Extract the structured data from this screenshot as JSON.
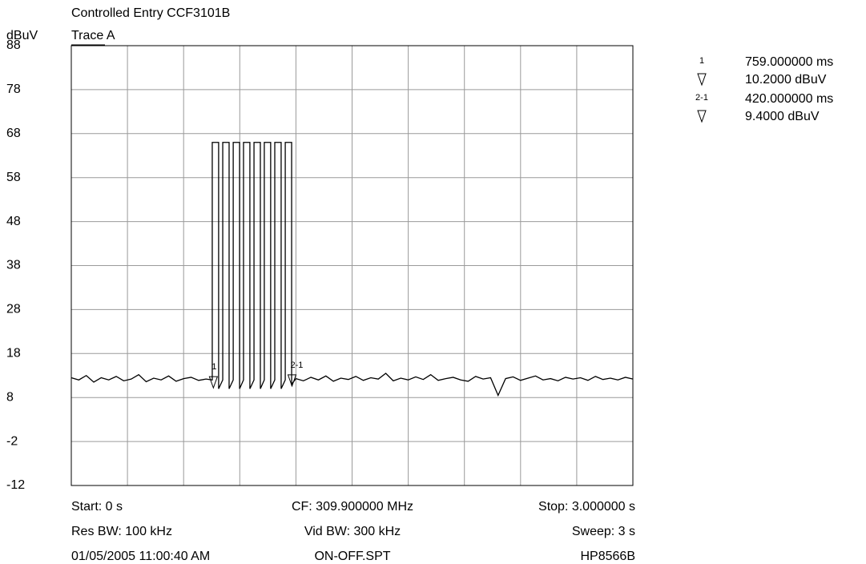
{
  "chart_data": {
    "type": "line",
    "title": "Controlled Entry CCF3101B",
    "subtitle": "Trace A",
    "ylabel": "dBuV",
    "xlim": [
      0,
      3
    ],
    "ylim": [
      -12,
      88
    ],
    "yticks": [
      88,
      78,
      68,
      58,
      48,
      38,
      28,
      18,
      8,
      -2,
      -12
    ],
    "grid": true,
    "series": [
      {
        "name": "Trace A",
        "color": "#000000",
        "x": [
          0,
          0.04,
          0.08,
          0.12,
          0.16,
          0.2,
          0.24,
          0.28,
          0.32,
          0.36,
          0.4,
          0.44,
          0.48,
          0.52,
          0.56,
          0.6,
          0.64,
          0.68,
          0.72,
          0.753,
          0.753,
          0.787,
          0.787,
          0.809,
          0.809,
          0.843,
          0.843,
          0.865,
          0.865,
          0.899,
          0.899,
          0.92,
          0.92,
          0.954,
          0.954,
          0.976,
          0.976,
          1.01,
          1.01,
          1.031,
          1.031,
          1.065,
          1.065,
          1.087,
          1.087,
          1.121,
          1.121,
          1.143,
          1.143,
          1.177,
          1.177,
          1.2,
          1.24,
          1.28,
          1.32,
          1.36,
          1.4,
          1.44,
          1.48,
          1.52,
          1.56,
          1.6,
          1.64,
          1.68,
          1.72,
          1.76,
          1.8,
          1.84,
          1.88,
          1.92,
          1.96,
          2,
          2.04,
          2.08,
          2.12,
          2.16,
          2.2,
          2.24,
          2.28,
          2.32,
          2.36,
          2.4,
          2.44,
          2.48,
          2.52,
          2.56,
          2.6,
          2.64,
          2.68,
          2.72,
          2.76,
          2.8,
          2.84,
          2.88,
          2.92,
          2.96,
          3
        ],
        "values": [
          12.5,
          12,
          13,
          11.5,
          12.5,
          12,
          12.8,
          11.8,
          12.2,
          13.2,
          11.6,
          12.4,
          12,
          12.9,
          11.7,
          12.3,
          12.6,
          11.9,
          12.2,
          12,
          66,
          66,
          10,
          12,
          66,
          66,
          10,
          12,
          66,
          66,
          10,
          12,
          66,
          66,
          10,
          12,
          66,
          66,
          10,
          12,
          66,
          66,
          10,
          12,
          66,
          66,
          10,
          12,
          66,
          66,
          11,
          12.3,
          11.8,
          12.6,
          12,
          12.9,
          11.7,
          12.4,
          12.1,
          12.8,
          11.9,
          12.5,
          12.2,
          13.5,
          11.8,
          12.4,
          12,
          12.7,
          12.1,
          13.2,
          11.9,
          12.3,
          12.6,
          12,
          11.7,
          12.8,
          12.2,
          12.5,
          8.5,
          12.3,
          12.7,
          11.9,
          12.4,
          12.9,
          12,
          12.3,
          11.8,
          12.6,
          12.2,
          12.5,
          11.9,
          12.8,
          12.1,
          12.4,
          12,
          12.6,
          12.2
        ]
      }
    ],
    "markers": [
      {
        "label": "1",
        "readout_x": "759.000000 ms",
        "readout_y": "10.2000 dBuV",
        "x": 0.759,
        "y": 10.2
      },
      {
        "label": "2-1",
        "readout_x": "420.000000 ms",
        "readout_y": "9.4000 dBuV",
        "x": 1.179,
        "y": 10.6
      }
    ],
    "footer": [
      [
        "Start: 0 s",
        "CF: 309.900000 MHz",
        "Stop: 3.000000 s"
      ],
      [
        "Res BW: 100 kHz",
        "Vid BW: 300 kHz",
        "Sweep: 3 s"
      ],
      [
        "01/05/2005 11:00:40 AM",
        "ON-OFF.SPT",
        "HP8566B"
      ]
    ]
  }
}
